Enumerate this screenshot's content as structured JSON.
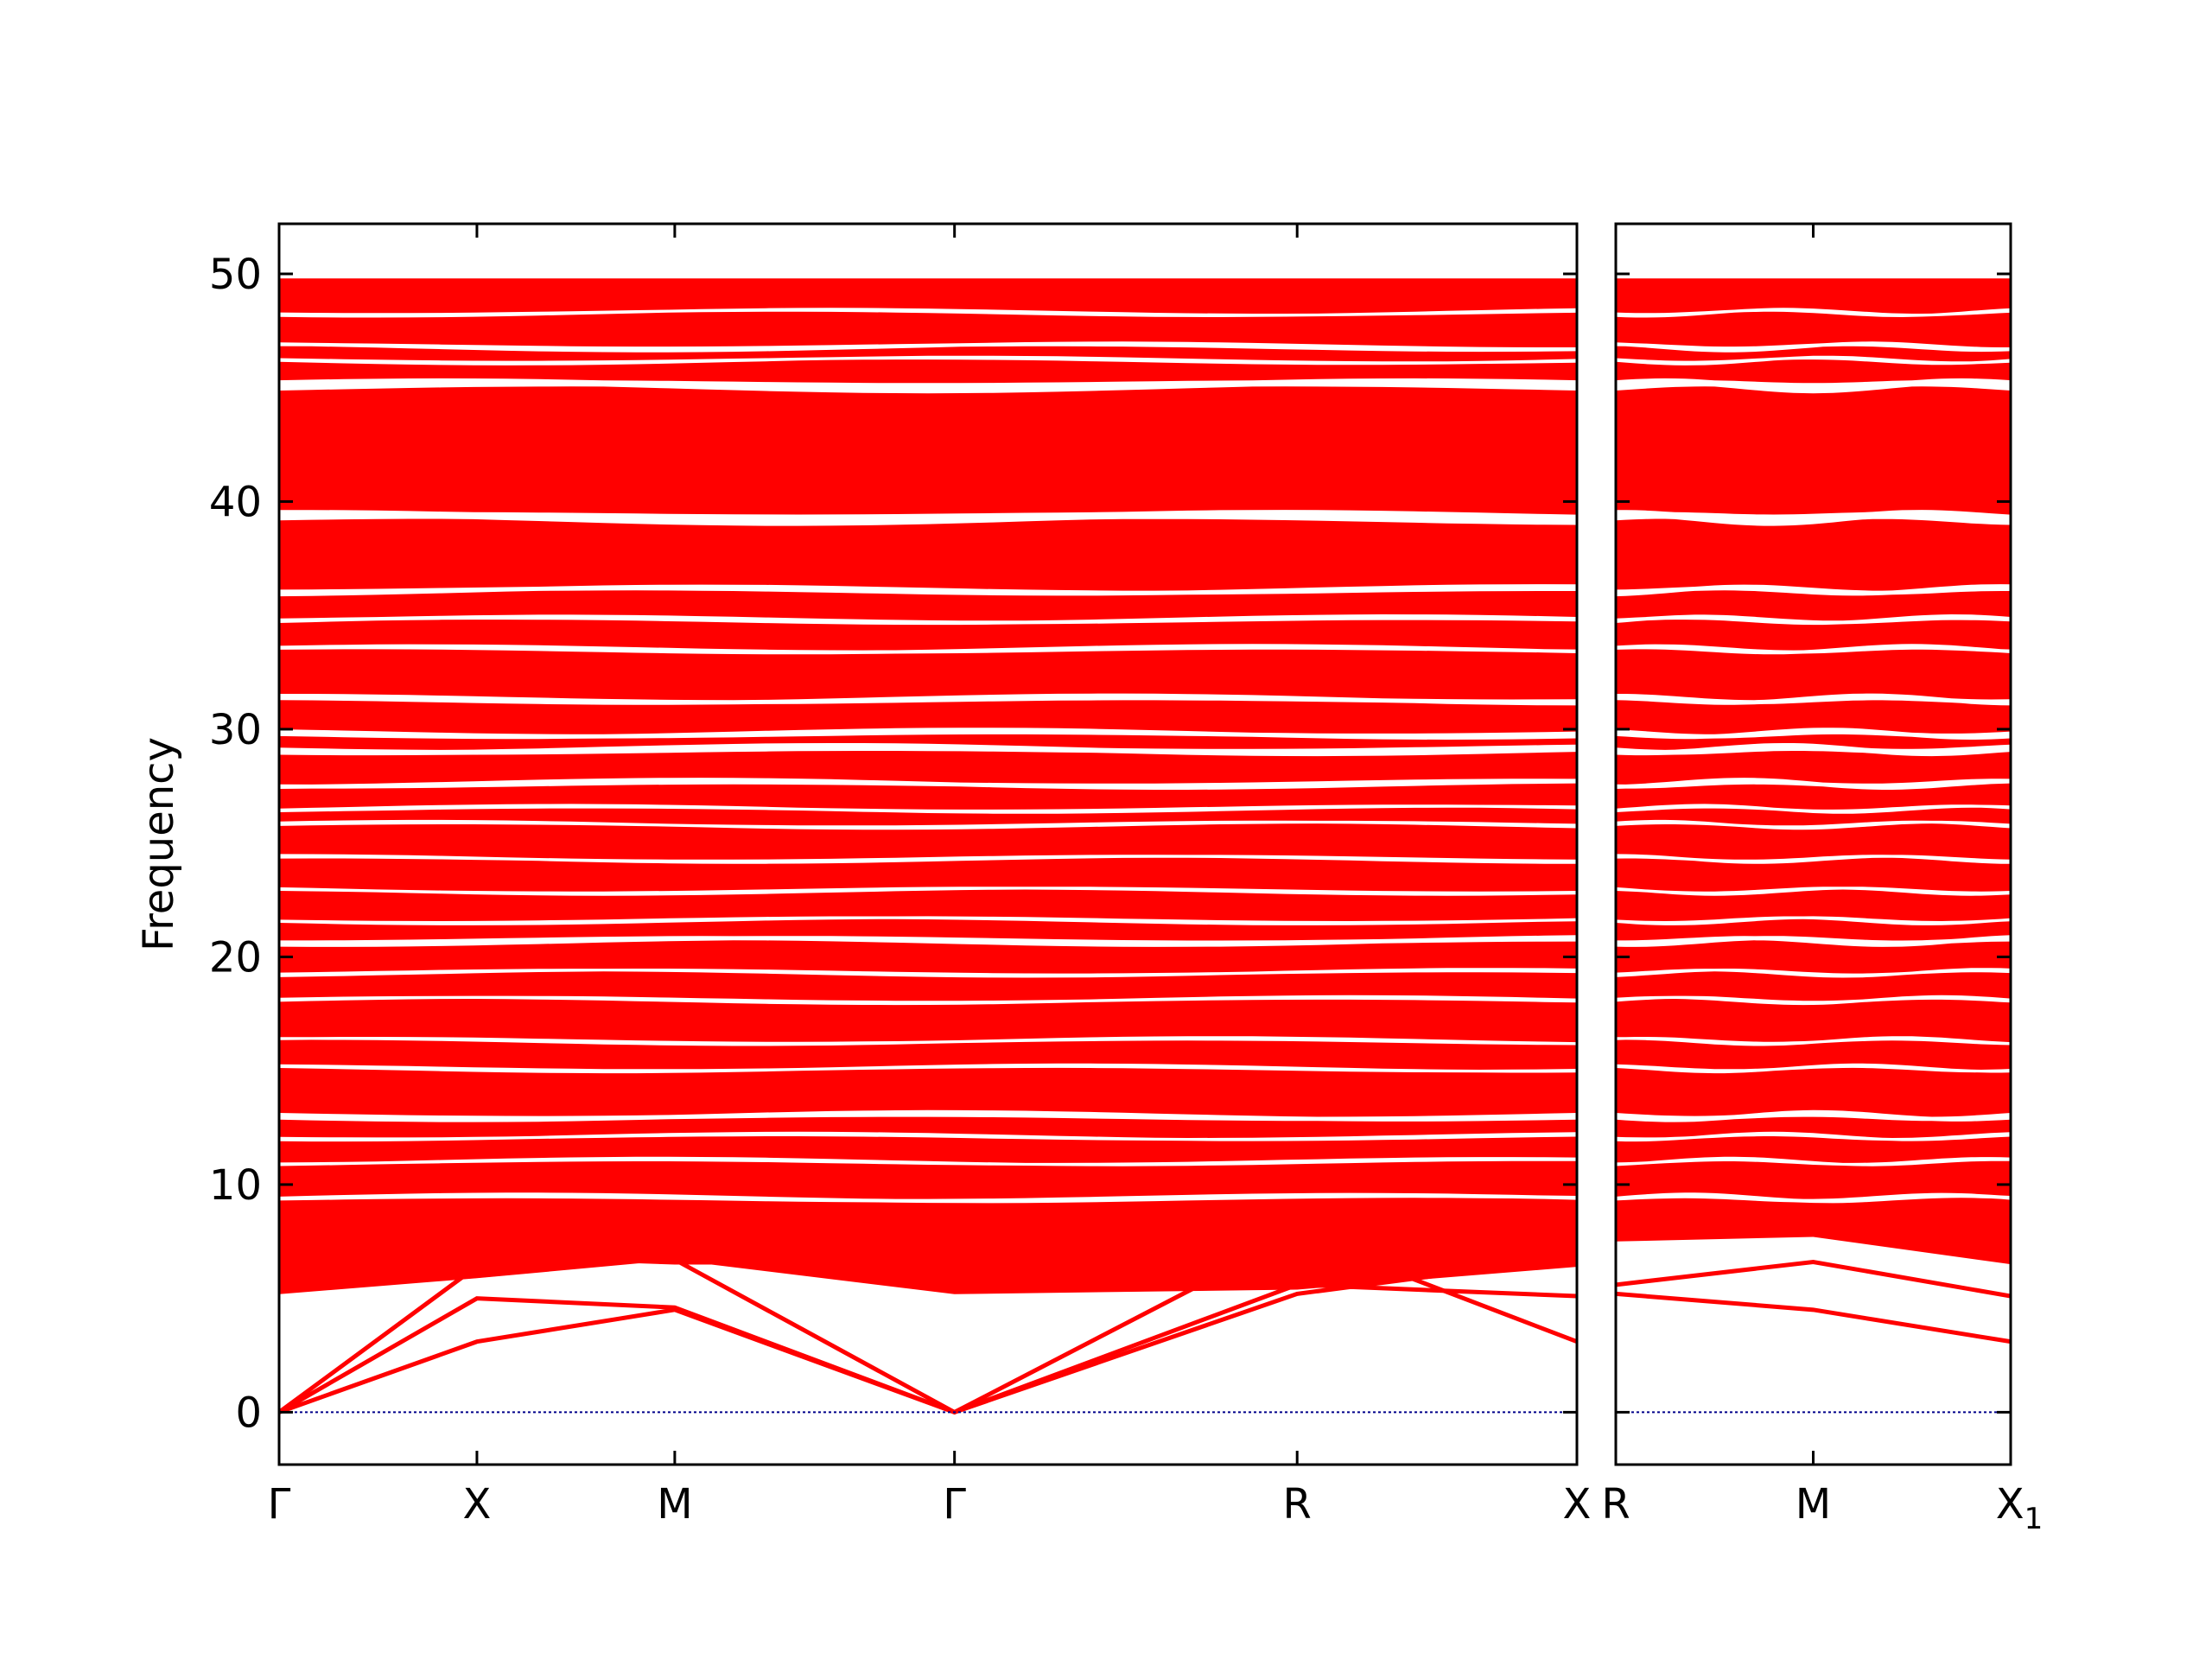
{
  "chart_data": {
    "type": "line",
    "ylabel": "Frequency",
    "ylim": [
      -2.3,
      52.2
    ],
    "yticks": [
      0,
      10,
      20,
      30,
      40,
      50
    ],
    "line_color": "#ff0000",
    "zero_line_color": "#00008b",
    "panels": [
      {
        "xticks": [
          {
            "label": "Γ",
            "pos": 0.0
          },
          {
            "label": "X",
            "pos": 0.5
          },
          {
            "label": "M",
            "pos": 1.0
          },
          {
            "label": "Γ",
            "pos": 1.7071
          },
          {
            "label": "R",
            "pos": 2.5731
          },
          {
            "label": "X",
            "pos": 3.2802
          }
        ]
      },
      {
        "xticks": [
          {
            "label": "R",
            "pos": 0.0
          },
          {
            "label": "M",
            "pos": 0.5
          },
          {
            "label": "X",
            "sub": "1",
            "pos": 1.0
          }
        ]
      }
    ],
    "acoustic_branches": {
      "panel1": [
        {
          "x": [
            0.0,
            0.5,
            1.0,
            1.7071,
            2.5731,
            3.2802
          ],
          "y": [
            0.0,
            5.0,
            4.6,
            0.0,
            5.2,
            6.8
          ]
        },
        {
          "x": [
            0.0,
            0.5,
            1.0,
            1.7071,
            2.5731,
            3.2802
          ],
          "y": [
            0.0,
            3.1,
            4.5,
            0.0,
            7.8,
            3.1
          ]
        },
        {
          "x": [
            0.0,
            0.5,
            1.0,
            1.7071,
            2.5731,
            3.2802
          ],
          "y": [
            0.0,
            6.4,
            6.7,
            0.0,
            5.6,
            5.1
          ]
        }
      ],
      "panel2": [
        {
          "x": [
            0.0,
            0.5,
            1.0
          ],
          "y": [
            5.2,
            4.5,
            3.1
          ]
        },
        {
          "x": [
            0.0,
            0.5,
            1.0
          ],
          "y": [
            5.6,
            6.6,
            5.1
          ]
        },
        {
          "x": [
            0.0,
            0.5,
            1.0
          ],
          "y": [
            7.8,
            8.0,
            6.8
          ]
        }
      ]
    },
    "low_optical_branches": {
      "panel1": [
        {
          "x": [
            0.0,
            0.5,
            1.0,
            1.7071,
            2.5731,
            3.2802
          ],
          "y": [
            5.3,
            6.0,
            6.8,
            5.3,
            5.5,
            6.5
          ]
        },
        {
          "x": [
            0.0,
            0.5,
            1.0,
            1.7071,
            2.5731,
            3.2802
          ],
          "y": [
            6.5,
            6.9,
            6.6,
            6.6,
            7.0,
            7.4
          ]
        },
        {
          "x": [
            0.0,
            0.5,
            1.0,
            1.7071,
            2.5731,
            3.2802
          ],
          "y": [
            7.2,
            8.3,
            7.7,
            7.5,
            8.6,
            8.1
          ]
        }
      ]
    },
    "band_region": [
      5.3,
      49.8
    ],
    "white_gaps": [
      {
        "at": 45.1,
        "width": 0.45
      },
      {
        "at": 39.3,
        "width": 0.5
      },
      {
        "at": 46.8,
        "width": 0.25
      },
      {
        "at": 46.2,
        "width": 0.2
      },
      {
        "at": 48.3,
        "width": 0.2
      },
      {
        "at": 36.1,
        "width": 0.3
      },
      {
        "at": 34.8,
        "width": 0.25
      },
      {
        "at": 33.5,
        "width": 0.25
      },
      {
        "at": 31.3,
        "width": 0.3
      },
      {
        "at": 29.8,
        "width": 0.3
      },
      {
        "at": 29.1,
        "width": 0.35
      },
      {
        "at": 27.6,
        "width": 0.3
      },
      {
        "at": 26.5,
        "width": 0.2
      },
      {
        "at": 25.8,
        "width": 0.2
      },
      {
        "at": 24.3,
        "width": 0.2
      },
      {
        "at": 22.9,
        "width": 0.2
      },
      {
        "at": 21.6,
        "width": 0.2
      },
      {
        "at": 20.7,
        "width": 0.3
      },
      {
        "at": 19.3,
        "width": 0.2
      },
      {
        "at": 18.1,
        "width": 0.2
      },
      {
        "at": 16.3,
        "width": 0.2
      },
      {
        "at": 15.1,
        "width": 0.2
      },
      {
        "at": 13.0,
        "width": 0.3
      },
      {
        "at": 12.1,
        "width": 0.2
      },
      {
        "at": 11.0,
        "width": 0.2
      },
      {
        "at": 9.4,
        "width": 0.25
      }
    ]
  }
}
